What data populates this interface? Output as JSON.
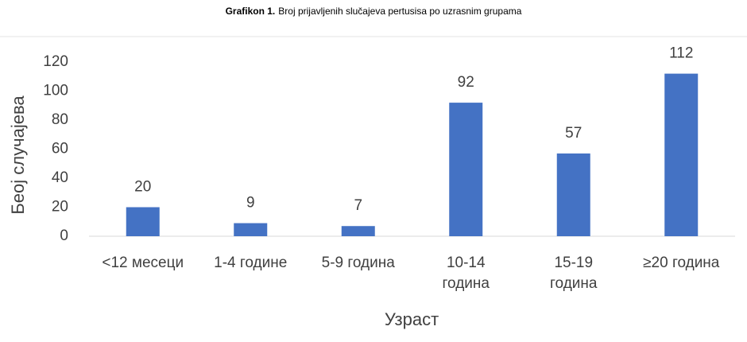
{
  "chart_data": {
    "type": "bar",
    "figure_label": "Grafikon 1.",
    "title": "Broj prijavljenih slučajeva pertusisa po uzrasnim grupama",
    "y_label": "Беој случајева",
    "x_label": "Узраст",
    "categories": [
      "<12 месеци",
      "1-4 године",
      "5-9  година",
      "10-14\nгодина",
      "15-19\nгодина",
      "≥20 година"
    ],
    "values": [
      20,
      9,
      7,
      92,
      57,
      112
    ],
    "color": "#4472c4",
    "ylim": [
      0,
      120
    ],
    "yticks": [
      0,
      20,
      40,
      60,
      80,
      100,
      120
    ],
    "grid": false
  }
}
